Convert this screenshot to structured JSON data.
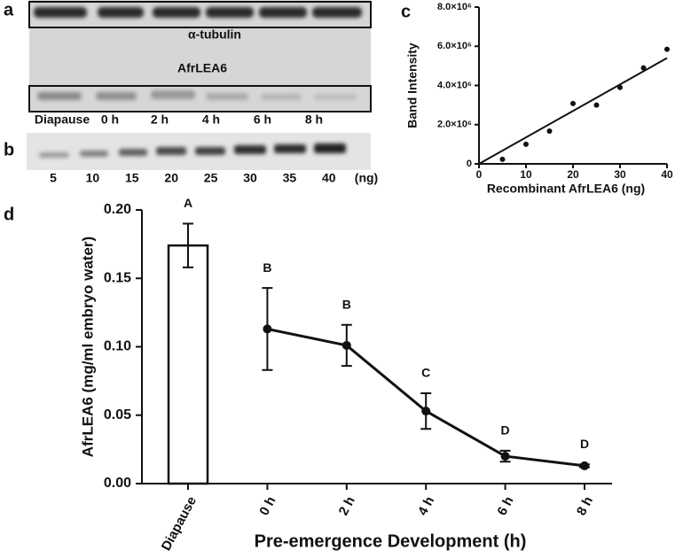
{
  "panels": [
    "a",
    "b",
    "c",
    "d"
  ],
  "blot_a": {
    "labels": [
      "α-tubulin",
      "AfrLEA6"
    ],
    "lanes": [
      "Diapause",
      "0 h",
      "2 h",
      "4 h",
      "6 h",
      "8 h"
    ]
  },
  "blot_b": {
    "lanes": [
      "5",
      "10",
      "15",
      "20",
      "25",
      "30",
      "35",
      "40"
    ],
    "unit": "(ng)"
  },
  "chart_data": [
    {
      "type": "scatter",
      "x_label": "Recombinant AfrLEA6 (ng)",
      "y_label": "Band Intensity",
      "x": [
        5,
        10,
        15,
        20,
        25,
        30,
        35,
        40
      ],
      "values": [
        230000,
        1000000,
        1670000,
        3080000,
        3000000,
        3900000,
        4900000,
        5850000
      ],
      "color": "#111111",
      "trendline": {
        "x": [
          0,
          40
        ],
        "y": [
          0,
          5400000
        ]
      },
      "xlim": [
        0,
        40
      ],
      "xticks": [
        0,
        10,
        20,
        30,
        40
      ],
      "ylim": [
        0,
        8000000
      ],
      "yticks": [
        0,
        {
          "value": 2000000,
          "label": "2.0×10⁶"
        },
        {
          "value": 4000000,
          "label": "4.0×10⁶"
        },
        {
          "value": 6000000,
          "label": "6.0×10⁶"
        },
        {
          "value": 8000000,
          "label": "8.0×10⁶"
        }
      ]
    },
    {
      "type": "combo",
      "x_label": "Pre-emergence Development (h)",
      "y_label": "AfrLEA6 (mg/ml embryo water)",
      "categories": [
        "Diapause",
        "0 h",
        "2 h",
        "4 h",
        "6 h",
        "8 h"
      ],
      "series": [
        {
          "type": "bar",
          "color": "#ffffff",
          "values": [
            0.174,
            null,
            null,
            null,
            null,
            null
          ],
          "errors": [
            0.016,
            null,
            null,
            null,
            null,
            null
          ]
        },
        {
          "type": "line",
          "color": "#111111",
          "values": [
            null,
            0.113,
            0.101,
            0.053,
            0.02,
            0.013
          ],
          "errors": [
            null,
            0.03,
            0.015,
            0.013,
            0.004,
            0.001
          ]
        }
      ],
      "letters": [
        "A",
        "B",
        "B",
        "C",
        "D",
        "D"
      ],
      "ylim": [
        0,
        0.2
      ],
      "yticks": [
        {
          "value": 0,
          "label": "0.00"
        },
        {
          "value": 0.05,
          "label": "0.05"
        },
        {
          "value": 0.1,
          "label": "0.10"
        },
        {
          "value": 0.15,
          "label": "0.15"
        },
        {
          "value": 0.2,
          "label": "0.20"
        }
      ]
    }
  ]
}
